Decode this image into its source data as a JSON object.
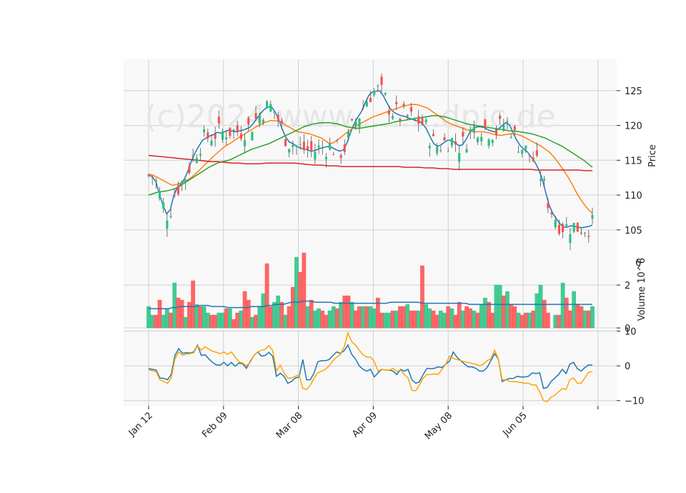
{
  "chart_data": {
    "type": "candlestick",
    "watermark": "(c)2024 www.........dpic.de",
    "x_ticks": [
      "Jan 12",
      "Feb 09",
      "Mar 08",
      "Apr 09",
      "May 08",
      "Jun 05"
    ],
    "price_panel": {
      "ylabel": "Price",
      "ylim": [
        102,
        129.5
      ],
      "y_ticks": [
        105,
        110,
        115,
        120,
        125
      ],
      "bullish_color": "#26c281",
      "bearish_color": "#ff4d4d",
      "ma_lines": [
        {
          "color": "#1f77b4",
          "values": [
            112.8,
            112.7,
            111.9,
            110.2,
            108.5,
            107.3,
            107.9,
            110.0,
            111.1,
            111.6,
            112.4,
            113.6,
            115.1,
            116.2,
            117.1,
            117.9,
            118.2,
            118.5,
            118.7,
            119.0,
            118.9,
            119.1,
            119.3,
            119.2,
            119.1,
            119.2,
            119.3,
            119.5,
            119.7,
            120.3,
            121.0,
            121.7,
            122.3,
            122.6,
            122.7,
            122.0,
            120.9,
            119.5,
            118.3,
            117.6,
            117.4,
            117.0,
            116.8,
            116.6,
            116.5,
            116.3,
            116.4,
            116.6,
            116.8,
            116.9,
            117.0,
            116.8,
            116.5,
            116.3,
            116.5,
            117.5,
            119.0,
            120.3,
            121.2,
            122.0,
            123.2,
            124.3,
            124.8,
            124.9,
            125.0,
            124.3,
            123.3,
            122.4,
            121.9,
            121.6,
            121.4,
            121.3,
            121.1,
            120.9,
            120.7,
            120.6,
            120.2,
            119.5,
            118.4,
            117.4,
            117.0,
            117.2,
            117.6,
            117.9,
            117.8,
            117.5,
            117.1,
            117.2,
            118.0,
            119.0,
            119.5,
            119.8,
            119.8,
            119.7,
            119.4,
            119.2,
            119.1,
            119.5,
            120.0,
            120.4,
            120.1,
            119.0,
            117.9,
            117.1,
            116.6,
            116.2,
            115.5,
            114.8,
            113.8,
            112.5,
            110.5,
            108.6,
            107.4,
            106.6,
            105.9,
            105.4,
            105.4,
            105.6,
            105.5,
            105.4,
            105.3,
            105.4,
            105.5,
            105.7
          ]
        },
        {
          "color": "#ff7f0e",
          "values": [
            113.0,
            112.9,
            112.6,
            112.3,
            112.0,
            111.7,
            111.4,
            111.5,
            111.7,
            111.9,
            112.2,
            112.6,
            113.1,
            113.6,
            114.2,
            114.7,
            115.3,
            115.8,
            116.3,
            116.8,
            117.2,
            117.5,
            117.9,
            118.3,
            118.6,
            119.0,
            119.3,
            119.7,
            120.0,
            120.3,
            120.5,
            120.7,
            120.7,
            120.6,
            120.4,
            120.0,
            119.7,
            119.4,
            119.1,
            119.0,
            118.9,
            118.8,
            118.6,
            118.4,
            118.2,
            117.8,
            117.4,
            117.5,
            117.9,
            118.3,
            118.8,
            119.2,
            119.6,
            120.0,
            120.3,
            120.6,
            120.9,
            121.2,
            121.4,
            121.6,
            121.8,
            122.0,
            122.2,
            122.4,
            122.6,
            122.8,
            122.9,
            123.0,
            123.0,
            122.9,
            122.7,
            122.5,
            122.1,
            121.7,
            121.3,
            120.9,
            120.5,
            120.2,
            120.0,
            119.8,
            119.6,
            119.4,
            119.2,
            119.1,
            119.1,
            119.1,
            119.0,
            118.9,
            118.7,
            118.6,
            118.6,
            118.7,
            118.8,
            118.8,
            118.7,
            118.5,
            118.2,
            117.9,
            117.6,
            117.3,
            117.0,
            116.6,
            116.2,
            115.6,
            114.9,
            114.1,
            113.3,
            112.4,
            111.4,
            110.3,
            109.4,
            108.6,
            107.9,
            107.4
          ]
        },
        {
          "color": "#2ca02c",
          "values": [
            110.0,
            110.2,
            110.4,
            110.5,
            110.6,
            110.7,
            110.9,
            111.2,
            111.6,
            112.0,
            112.4,
            112.8,
            113.2,
            113.6,
            114.0,
            114.3,
            114.6,
            114.8,
            114.9,
            115.1,
            115.4,
            115.7,
            116.0,
            116.3,
            116.6,
            116.8,
            117.0,
            117.2,
            117.4,
            117.7,
            118.0,
            118.3,
            118.6,
            118.9,
            119.2,
            119.5,
            119.8,
            120.0,
            120.2,
            120.3,
            120.4,
            120.4,
            120.4,
            120.3,
            120.2,
            120.0,
            119.8,
            119.7,
            119.6,
            119.6,
            119.7,
            119.8,
            119.9,
            120.0,
            120.1,
            120.2,
            120.3,
            120.5,
            120.6,
            120.7,
            120.8,
            120.9,
            121.0,
            121.1,
            121.2,
            121.3,
            121.4,
            121.4,
            121.3,
            121.2,
            121.0,
            120.8,
            120.6,
            120.4,
            120.2,
            120.1,
            120.0,
            119.9,
            119.8,
            119.7,
            119.6,
            119.5,
            119.4,
            119.3,
            119.2,
            119.2,
            119.1,
            119.0,
            118.9,
            118.8,
            118.6,
            118.4,
            118.2,
            117.9,
            117.6,
            117.3,
            117.0,
            116.6,
            116.2,
            115.8,
            115.4,
            115.0,
            114.5,
            114.0
          ]
        },
        {
          "color": "#d62728",
          "values": [
            115.7,
            115.6,
            115.5,
            115.4,
            115.3,
            115.2,
            115.1,
            115.0,
            114.9,
            114.8,
            114.8,
            114.7,
            114.6,
            114.6,
            114.5,
            114.5,
            114.5,
            114.6,
            114.6,
            114.6,
            114.6,
            114.6,
            114.5,
            114.4,
            114.3,
            114.3,
            114.2,
            114.2,
            114.1,
            114.1,
            114.1,
            114.1,
            114.1,
            114.1,
            114.1,
            114.1,
            114.1,
            114.0,
            114.0,
            114.0,
            113.9,
            113.9,
            113.8,
            113.8,
            113.7,
            113.7,
            113.7,
            113.7,
            113.7,
            113.7,
            113.7,
            113.7,
            113.7,
            113.7,
            113.7,
            113.7,
            113.6,
            113.6,
            113.6,
            113.6,
            113.6,
            113.6,
            113.6,
            113.5,
            113.5
          ]
        }
      ]
    },
    "volume_panel": {
      "ylabel": "Volume  10^6",
      "ylim": [
        0,
        3.6
      ],
      "y_ticks": [
        0,
        2
      ],
      "average_line_color": "#1f77b4",
      "volumes": [
        1.0,
        0.6,
        0.6,
        1.3,
        0.6,
        0.9,
        0.7,
        2.1,
        1.4,
        1.3,
        0.5,
        1.2,
        2.2,
        1.1,
        1.0,
        1.0,
        0.7,
        0.6,
        0.6,
        0.7,
        0.7,
        0.9,
        0.9,
        0.4,
        0.7,
        0.8,
        1.7,
        1.3,
        0.5,
        0.6,
        1.0,
        1.6,
        3.0,
        1.0,
        1.2,
        1.5,
        1.2,
        0.6,
        1.0,
        1.9,
        3.3,
        2.6,
        3.5,
        1.0,
        1.3,
        0.8,
        0.9,
        0.8,
        0.6,
        0.8,
        1.0,
        0.9,
        1.2,
        1.5,
        1.5,
        1.2,
        0.8,
        1.0,
        1.0,
        1.0,
        1.0,
        0.9,
        1.4,
        0.7,
        0.7,
        0.7,
        0.8,
        0.8,
        1.0,
        1.0,
        1.1,
        0.8,
        0.8,
        0.8,
        2.9,
        1.1,
        0.9,
        0.8,
        0.6,
        0.8,
        0.7,
        1.0,
        0.9,
        0.6,
        1.2,
        0.8,
        1.0,
        0.9,
        0.8,
        0.7,
        1.1,
        1.4,
        1.2,
        0.7,
        2.0,
        2.0,
        1.5,
        1.7,
        1.1,
        1.0,
        0.7,
        0.6,
        0.7,
        0.7,
        0.8,
        1.6,
        2.0,
        1.3,
        0.7,
        0.0,
        0.6,
        0.6,
        2.1,
        1.4,
        0.8,
        1.7,
        1.1,
        1.0,
        0.8,
        0.8,
        1.0
      ],
      "average": [
        0.9,
        0.9,
        0.9,
        0.9,
        0.9,
        0.9,
        0.95,
        0.95,
        1.0,
        1.0,
        1.0,
        1.0,
        1.0,
        1.05,
        1.05,
        1.05,
        1.0,
        1.0,
        1.0,
        1.0,
        0.95,
        0.95,
        0.95,
        0.95,
        0.95,
        0.95,
        1.0,
        1.0,
        1.0,
        1.0,
        1.05,
        1.05,
        1.1,
        1.1,
        1.1,
        1.15,
        1.2,
        1.2,
        1.2,
        1.25,
        1.25,
        1.25,
        1.2,
        1.2,
        1.2,
        1.2,
        1.2,
        1.15,
        1.15,
        1.15,
        1.15,
        1.15,
        1.15,
        1.15,
        1.15,
        1.15,
        1.15,
        1.15,
        1.15,
        1.15,
        1.15,
        1.2,
        1.2,
        1.2,
        1.2,
        1.2,
        1.2,
        1.2,
        1.2,
        1.15,
        1.15,
        1.15,
        1.15,
        1.15,
        1.15,
        1.15,
        1.15,
        1.15,
        1.15,
        1.15,
        1.15,
        1.1,
        1.1,
        1.1,
        1.1,
        1.1,
        1.1,
        1.1,
        1.1,
        1.1,
        1.1,
        1.1,
        1.1,
        1.1,
        1.1,
        1.1,
        1.1,
        1.1,
        1.1,
        1.1,
        1.1,
        1.1,
        1.1,
        1.1,
        1.1,
        1.1,
        1.1,
        1.1,
        1.1,
        1.1,
        1.1,
        1.1,
        1.1
      ]
    },
    "oscillator_panel": {
      "ylim": [
        -11.5,
        10.5
      ],
      "y_ticks": [
        -10,
        0,
        10
      ],
      "series": [
        {
          "color": "#1f77b4",
          "values": [
            -0.8,
            -1.0,
            -1.2,
            -3.5,
            -3.6,
            -4.0,
            -2.5,
            3.0,
            5.0,
            3.6,
            3.8,
            3.7,
            4.0,
            6.0,
            3.0,
            3.2,
            2.0,
            1.0,
            0.3,
            0.2,
            1.0,
            0.0,
            1.0,
            -0.1,
            0.8,
            0.6,
            -0.7,
            1.3,
            3.0,
            4.0,
            2.8,
            3.0,
            3.9,
            2.7,
            -3.0,
            -2.1,
            -3.0,
            -5.0,
            -4.5,
            -3.5,
            -3.2,
            1.8,
            -4.0,
            -4.0,
            -2.0,
            1.2,
            1.5,
            1.5,
            1.8,
            3.0,
            4.0,
            3.6,
            4.4,
            6.0,
            3.3,
            2.0,
            0.0,
            -1.0,
            -1.5,
            -1.0,
            -3.2,
            -2.0,
            -1.0,
            -1.2,
            -1.2,
            -1.5,
            -2.5,
            -1.0,
            -1.5,
            -1.0,
            -4.0,
            -5.0,
            -4.6,
            -2.5,
            -0.7,
            -0.8,
            -0.7,
            -0.3,
            -0.5,
            0.5,
            1.3,
            4.0,
            2.5,
            1.5,
            0.5,
            -0.3,
            -0.3,
            -0.7,
            -1.5,
            -1.5,
            -0.5,
            1.5,
            3.5,
            2.0,
            -4.5,
            -4.0,
            -3.6,
            -3.6,
            -3.0,
            -3.2,
            -3.2,
            -3.0,
            -2.0,
            -2.2,
            -2.0,
            -6.5,
            -6.2,
            -4.5,
            -3.5,
            -2.5,
            -1.0,
            -2.2,
            0.5,
            1.0,
            -0.8,
            -1.5,
            -0.5,
            0.3,
            0.2
          ]
        },
        {
          "color": "#ffa500",
          "values": [
            -1.2,
            -1.4,
            -1.6,
            -4.0,
            -4.5,
            -5.0,
            -3.5,
            2.0,
            4.0,
            3.0,
            3.4,
            3.5,
            3.8,
            5.8,
            4.5,
            5.5,
            4.8,
            4.2,
            3.9,
            3.5,
            4.0,
            3.3,
            4.0,
            2.6,
            1.2,
            0.8,
            0.0,
            1.0,
            3.0,
            4.0,
            4.5,
            4.8,
            5.8,
            4.4,
            -1.5,
            0.2,
            -2.0,
            -3.5,
            -3.5,
            -3.0,
            -2.6,
            -6.5,
            -6.8,
            -5.5,
            -3.5,
            -2.0,
            -1.5,
            -1.0,
            0.0,
            1.5,
            2.5,
            3.3,
            5.5,
            9.5,
            7.0,
            6.0,
            4.5,
            3.2,
            2.5,
            2.5,
            1.2,
            -1.5,
            -1.0,
            -1.2,
            -1.2,
            -0.7,
            -1.6,
            -1.2,
            -2.5,
            -3.5,
            -7.0,
            -7.2,
            -5.5,
            -3.5,
            -2.5,
            -2.5,
            -2.3,
            -2.5,
            -1.0,
            0.5,
            2.8,
            2.2,
            1.8,
            1.5,
            1.2,
            1.0,
            0.7,
            0.5,
            0.0,
            0.5,
            1.5,
            2.0,
            4.5,
            2.0,
            -4.0,
            -4.0,
            -4.5,
            -4.5,
            -4.6,
            -4.8,
            -5.0,
            -5.0,
            -5.5,
            -5.5,
            -7.5,
            -10.0,
            -10.3,
            -9.0,
            -8.5,
            -7.5,
            -6.5,
            -6.8,
            -4.0,
            -3.5,
            -5.0,
            -5.0,
            -3.5,
            -1.8,
            -1.7
          ]
        }
      ]
    }
  }
}
